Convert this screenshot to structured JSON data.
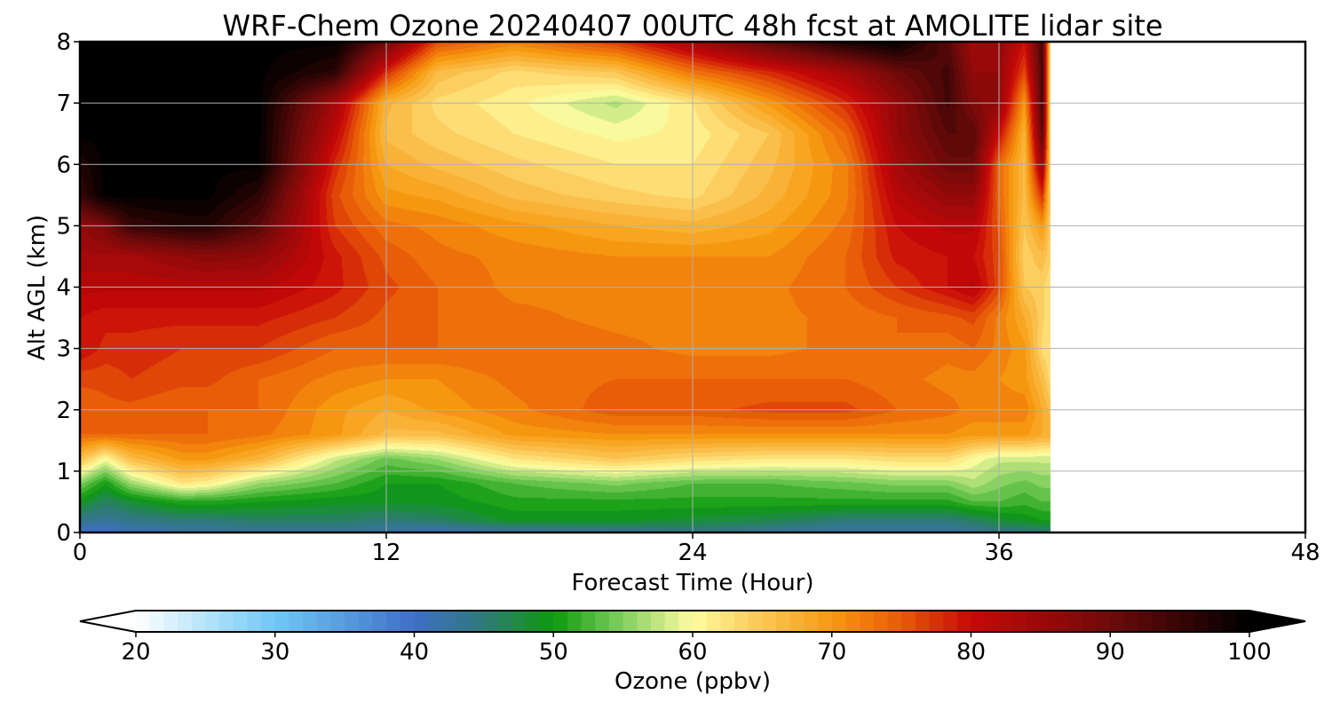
{
  "chart_data": {
    "type": "heatmap",
    "title": "WRF-Chem Ozone  20240407 00UTC 48h fcst at AMOLITE lidar site",
    "xlabel": "Forecast Time (Hour)",
    "ylabel": "Alt AGL (km)",
    "xlim": [
      0,
      48
    ],
    "ylim": [
      0,
      8
    ],
    "xticks": [
      0,
      12,
      24,
      36,
      48
    ],
    "yticks": [
      0,
      1,
      2,
      3,
      4,
      5,
      6,
      7,
      8
    ],
    "grid": true,
    "data_end_hour": 38,
    "colorbar": {
      "label": "Ozone  (ppbv)",
      "range": [
        20,
        100
      ],
      "ticks": [
        20,
        30,
        40,
        50,
        60,
        70,
        80,
        90,
        100
      ],
      "extend": "both",
      "stops": [
        {
          "value": 20,
          "color": "#ffffff"
        },
        {
          "value": 30,
          "color": "#6ec8f5"
        },
        {
          "value": 40,
          "color": "#3f6ec8"
        },
        {
          "value": 45,
          "color": "#2f7a78"
        },
        {
          "value": 50,
          "color": "#0c9a0c"
        },
        {
          "value": 55,
          "color": "#82d060"
        },
        {
          "value": 60,
          "color": "#fffca0"
        },
        {
          "value": 65,
          "color": "#fbc654"
        },
        {
          "value": 70,
          "color": "#f79a10"
        },
        {
          "value": 75,
          "color": "#e85a08"
        },
        {
          "value": 80,
          "color": "#c80808"
        },
        {
          "value": 90,
          "color": "#6e0a0a"
        },
        {
          "value": 100,
          "color": "#000000"
        }
      ]
    },
    "hours": [
      0,
      1,
      2,
      4,
      5,
      7,
      10,
      12,
      14,
      17,
      21,
      24,
      27,
      30,
      32,
      34,
      35,
      36,
      37,
      37.7,
      38
    ],
    "altitudes_km": [
      0,
      0.2,
      0.5,
      0.8,
      1.2,
      1.6,
      2,
      2.5,
      3,
      3.5,
      4,
      4.5,
      5,
      5.5,
      6,
      6.5,
      7,
      7.5,
      8
    ],
    "ozone_ppbv": [
      [
        40,
        40,
        41,
        42,
        42,
        43,
        43,
        42,
        41,
        42,
        43,
        44,
        43,
        42,
        42,
        42,
        43,
        44,
        44,
        45,
        45
      ],
      [
        44,
        43,
        44,
        45,
        45,
        46,
        46,
        45,
        46,
        49,
        49,
        48,
        47,
        45,
        45,
        45,
        46,
        48,
        49,
        50,
        50
      ],
      [
        49,
        46,
        48,
        51,
        51,
        50,
        49,
        49,
        49,
        51,
        51,
        51,
        51,
        51,
        51,
        51,
        53,
        53,
        52,
        53,
        53
      ],
      [
        55,
        50,
        56,
        62,
        61,
        56,
        53,
        50,
        50,
        53,
        55,
        53,
        53,
        54,
        55,
        55,
        57,
        55,
        54,
        55,
        55
      ],
      [
        66,
        60,
        66,
        70,
        70,
        67,
        58,
        54,
        56,
        62,
        65,
        63,
        62,
        62,
        63,
        63,
        60,
        58,
        58,
        58,
        58
      ],
      [
        74,
        74,
        74,
        74,
        74,
        73,
        70,
        66,
        66,
        70,
        71,
        71,
        71,
        71,
        71,
        71,
        70,
        70,
        70,
        68,
        68
      ],
      [
        74,
        75,
        75,
        74,
        74,
        74,
        70,
        68,
        70,
        72,
        75,
        75,
        76,
        76,
        74,
        73,
        72,
        72,
        72,
        68,
        66
      ],
      [
        76,
        76,
        77,
        76,
        76,
        74,
        72,
        71,
        71,
        73,
        74,
        74,
        74,
        74,
        73,
        72,
        72,
        71,
        70,
        66,
        63
      ],
      [
        80,
        78,
        78,
        77,
        77,
        77,
        74,
        74,
        74,
        74,
        73,
        72,
        72,
        73,
        74,
        73,
        74,
        72,
        70,
        63,
        62
      ],
      [
        80,
        79,
        79,
        79,
        79,
        79,
        77,
        75,
        74,
        73,
        72,
        72,
        72,
        73,
        74,
        75,
        76,
        72,
        68,
        64,
        62
      ],
      [
        82,
        82,
        82,
        82,
        82,
        82,
        79,
        76,
        74,
        72,
        72,
        72,
        72,
        74,
        77,
        80,
        82,
        76,
        65,
        64,
        62
      ],
      [
        84,
        84,
        84,
        86,
        87,
        86,
        79,
        75,
        73,
        72,
        71,
        71,
        71,
        74,
        79,
        80,
        80,
        76,
        64,
        66,
        64
      ],
      [
        86,
        89,
        95,
        97,
        97,
        92,
        77,
        73,
        72,
        70,
        68,
        67,
        69,
        73,
        80,
        82,
        82,
        75,
        65,
        70,
        64
      ],
      [
        95,
        100,
        100,
        100,
        100,
        96,
        76,
        70,
        69,
        66,
        64,
        63,
        67,
        72,
        82,
        86,
        86,
        74,
        66,
        78,
        64
      ],
      [
        97,
        100,
        100,
        100,
        100,
        100,
        78,
        68,
        66,
        64,
        62,
        62,
        66,
        72,
        84,
        90,
        90,
        74,
        66,
        86,
        64
      ],
      [
        100,
        100,
        100,
        100,
        100,
        100,
        81,
        66,
        64,
        62,
        60,
        61,
        65,
        74,
        86,
        92,
        92,
        80,
        67,
        92,
        64
      ],
      [
        100,
        100,
        100,
        100,
        100,
        100,
        84,
        67,
        63,
        61,
        57,
        62,
        70,
        78,
        86,
        94,
        88,
        86,
        70,
        94,
        64
      ],
      [
        100,
        100,
        100,
        100,
        100,
        100,
        96,
        78,
        66,
        63,
        65,
        73,
        78,
        84,
        90,
        94,
        86,
        86,
        76,
        94,
        64
      ],
      [
        100,
        100,
        100,
        100,
        100,
        100,
        100,
        90,
        76,
        72,
        77,
        84,
        92,
        98,
        100,
        92,
        84,
        86,
        80,
        94,
        64
      ]
    ]
  }
}
